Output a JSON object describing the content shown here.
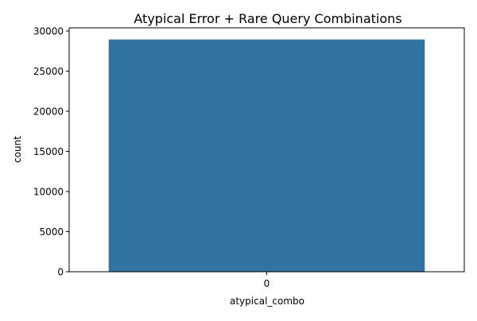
{
  "chart_data": {
    "type": "bar",
    "title": "Atypical Error + Rare Query Combinations",
    "xlabel": "atypical_combo",
    "ylabel": "count",
    "categories": [
      "0"
    ],
    "values": [
      28950
    ],
    "ylim": [
      0,
      30400
    ],
    "yticks": [
      0,
      5000,
      10000,
      15000,
      20000,
      25000,
      30000
    ],
    "grid": false,
    "legend": "none",
    "bar_color": "#3274a1"
  }
}
